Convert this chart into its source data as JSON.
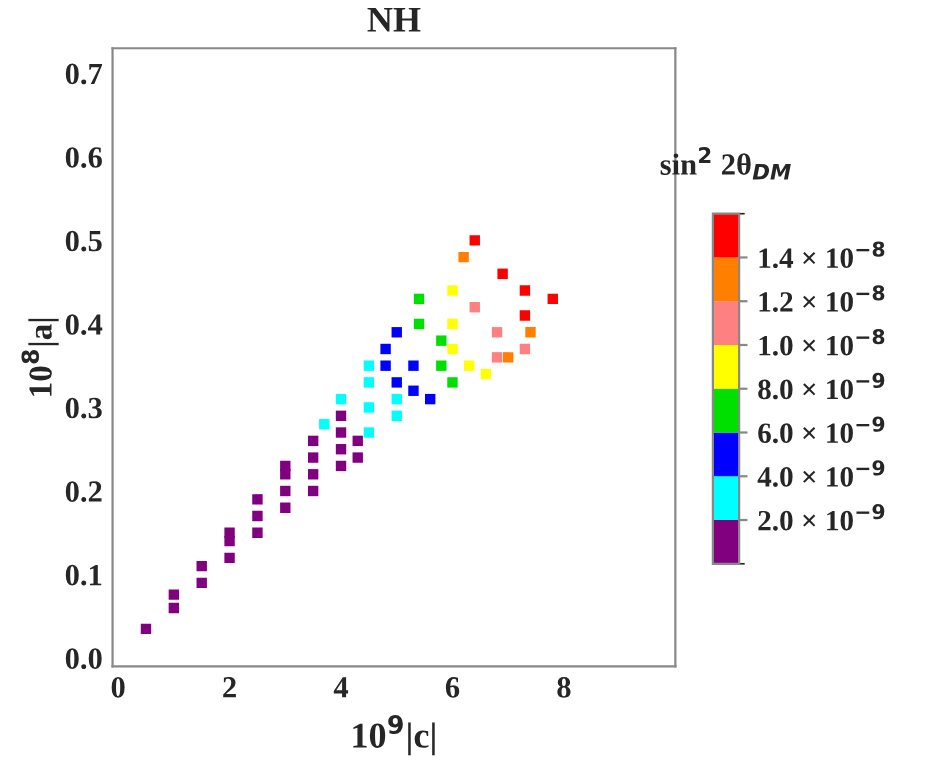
{
  "chart_data": {
    "type": "scatter",
    "title": "NH",
    "xlabel": "10$^{9}$|c|",
    "ylabel": "10$^{8}$|a|",
    "clabel": "sin$^{2}$ 2θ$_{DM}$",
    "xlim": [
      -0.1,
      10
    ],
    "ylim": [
      -0.01,
      0.73
    ],
    "xticks": [
      0,
      2,
      4,
      6,
      8
    ],
    "yticks": [
      {
        "value": 0,
        "label": "0.0"
      },
      0.1,
      0.2,
      0.3,
      0.4,
      0.5,
      0.6,
      0.7
    ],
    "clim": [
      0,
      1.6e-08
    ],
    "cticks": [
      {
        "value": 2e-09,
        "label": "2.0 × 10$^{−9}$"
      },
      {
        "value": 4e-09,
        "label": "4.0 × 10$^{−9}$"
      },
      {
        "value": 6e-09,
        "label": "6.0 × 10$^{−9}$"
      },
      {
        "value": 8e-09,
        "label": "8.0 × 10$^{−9}$"
      },
      {
        "value": 1e-08,
        "label": "1.0 × 10$^{−8}$"
      },
      {
        "value": 1.2e-08,
        "label": "1.2 × 10$^{−8}$"
      },
      {
        "value": 1.4e-08,
        "label": "1.4 × 10$^{−8}$"
      }
    ],
    "marker": "square",
    "grid": false,
    "legend": false,
    "series": [
      {
        "color": "#800080",
        "x": [
          0.5,
          1,
          1,
          1.5,
          1.5,
          2,
          2,
          2,
          2.5,
          2.5,
          2.5,
          3,
          3,
          3,
          3,
          3.5,
          3.5,
          3.5,
          3.5,
          4,
          4,
          4,
          4,
          4.3,
          4.3
        ],
        "values": [
          0.035,
          0.06,
          0.076,
          0.09,
          0.11,
          0.12,
          0.14,
          0.15,
          0.15,
          0.17,
          0.19,
          0.18,
          0.2,
          0.22,
          0.23,
          0.2,
          0.22,
          0.24,
          0.26,
          0.23,
          0.25,
          0.27,
          0.29,
          0.24,
          0.26
        ]
      },
      {
        "color": "#00ffff",
        "x": [
          3.7,
          4,
          4.5,
          4.5,
          4.5,
          5,
          5,
          4.5
        ],
        "values": [
          0.28,
          0.31,
          0.27,
          0.3,
          0.33,
          0.29,
          0.31,
          0.35
        ]
      },
      {
        "color": "#0000ff",
        "x": [
          4.8,
          4.8,
          5,
          5,
          5.3,
          5.3,
          5.6
        ],
        "values": [
          0.35,
          0.37,
          0.33,
          0.39,
          0.32,
          0.35,
          0.31
        ]
      },
      {
        "color": "#00e000",
        "x": [
          5.4,
          5.4,
          5.8,
          5.8,
          6
        ],
        "values": [
          0.4,
          0.43,
          0.35,
          0.38,
          0.33
        ]
      },
      {
        "color": "#ffff00",
        "x": [
          6,
          6,
          6,
          6.3,
          6.6
        ],
        "values": [
          0.44,
          0.4,
          0.37,
          0.35,
          0.34
        ]
      },
      {
        "color": "#ff8080",
        "x": [
          6.4,
          6.8,
          6.8,
          7.3
        ],
        "values": [
          0.42,
          0.39,
          0.36,
          0.37
        ]
      },
      {
        "color": "#ff8000",
        "x": [
          6.2,
          7.4,
          7.0
        ],
        "values": [
          0.48,
          0.39,
          0.36
        ]
      },
      {
        "color": "#ff0000",
        "x": [
          6.4,
          7.3,
          7.3,
          7.8,
          6.9
        ],
        "values": [
          0.5,
          0.44,
          0.41,
          0.43,
          0.46
        ]
      }
    ]
  }
}
